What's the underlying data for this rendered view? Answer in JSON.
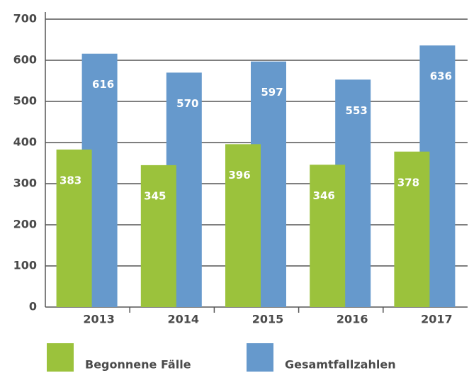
{
  "chart_data": {
    "type": "bar",
    "categories": [
      "2013",
      "2014",
      "2015",
      "2016",
      "2017"
    ],
    "series": [
      {
        "name": "Begonnene Fälle",
        "color": "#9bc23c",
        "values": [
          383,
          345,
          396,
          346,
          378
        ]
      },
      {
        "name": "Gesamtfallzahlen",
        "color": "#6699cc",
        "values": [
          616,
          570,
          597,
          553,
          636
        ]
      }
    ],
    "ylim": [
      0,
      700
    ],
    "yticks": [
      0,
      100,
      200,
      300,
      400,
      500,
      600,
      700
    ],
    "grid": true
  }
}
